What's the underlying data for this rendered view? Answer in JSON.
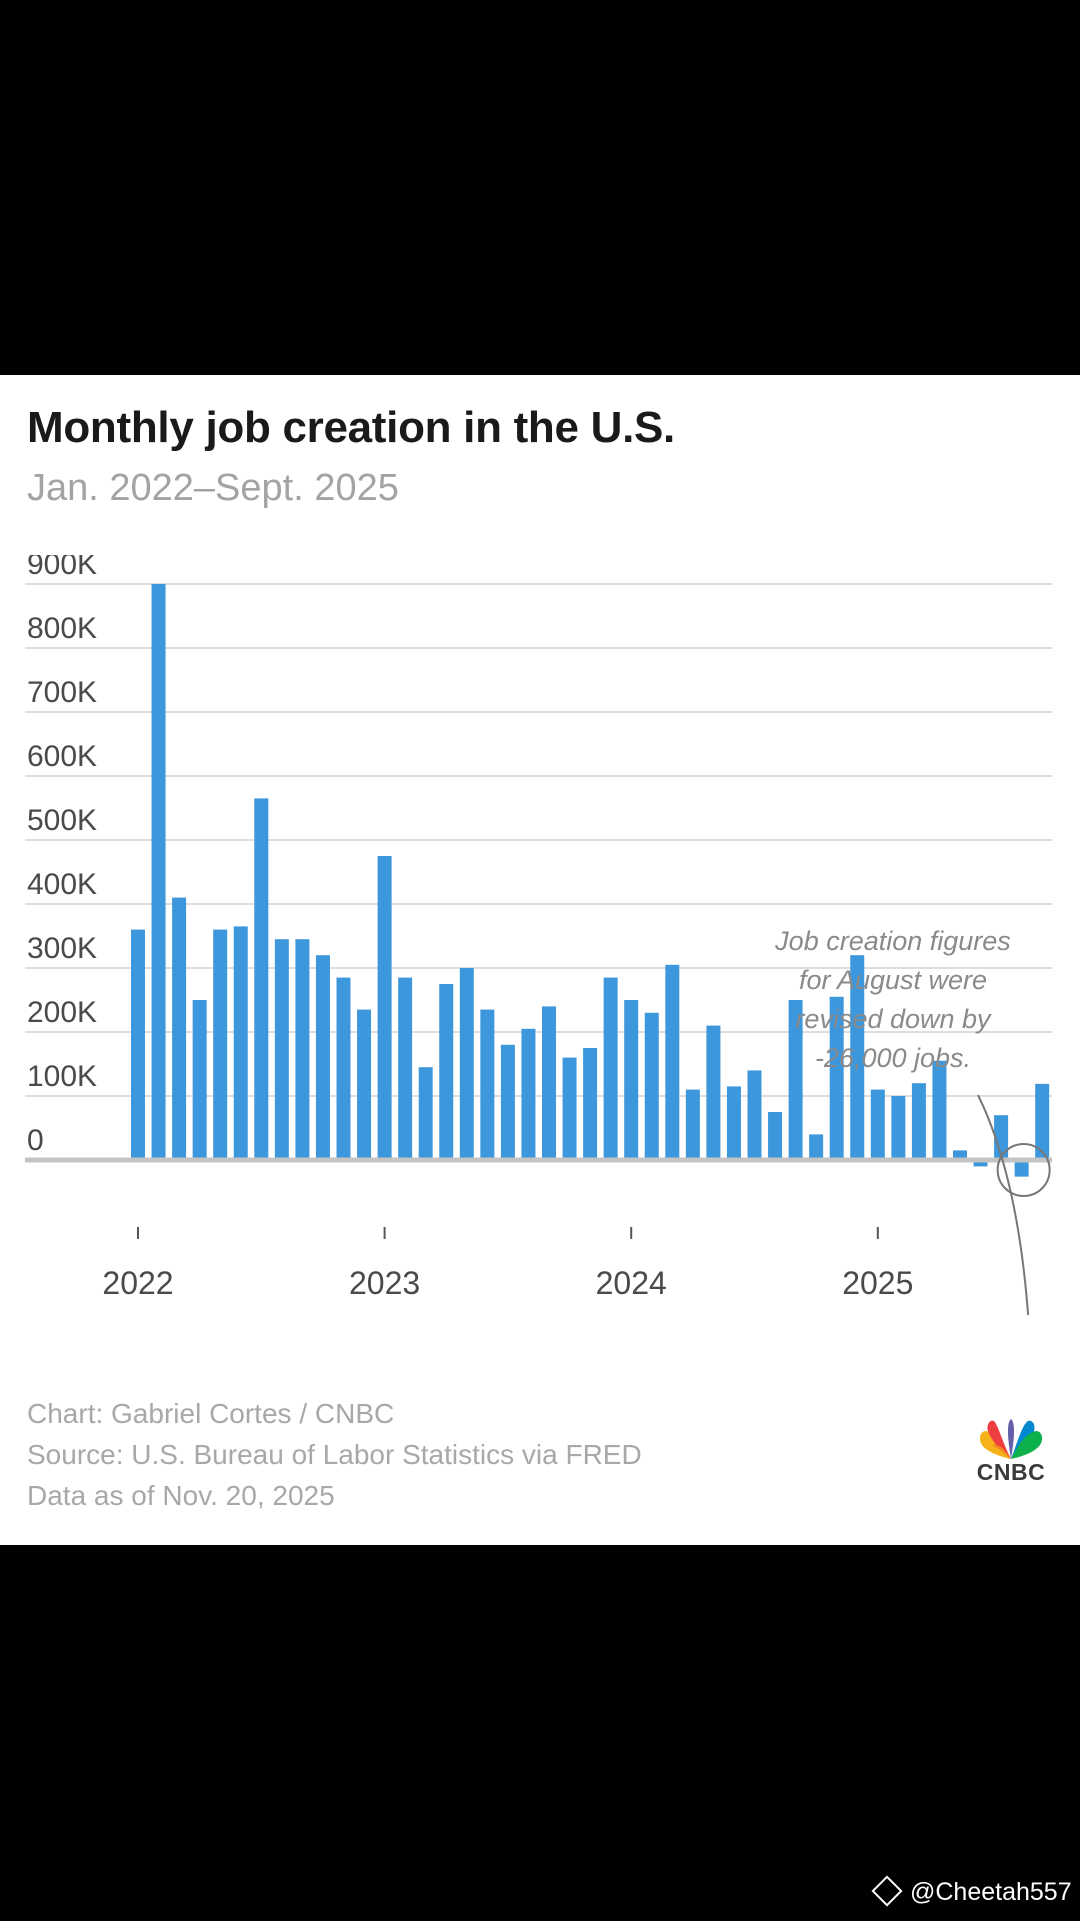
{
  "header": {
    "title": "Monthly job creation in the U.S.",
    "subtitle": "Jan. 2022–Sept. 2025"
  },
  "annotation": {
    "lines": [
      "Job creation figures",
      "for August were",
      "revised down by",
      "-26,000 jobs."
    ]
  },
  "footer": {
    "credit": "Chart: Gabriel Cortes / CNBC",
    "source": "Source: U.S. Bureau of Labor Statistics via FRED",
    "date": "Data as of Nov. 20, 2025"
  },
  "logo": {
    "text": "CNBC",
    "name": "cnbc-peacock-icon"
  },
  "watermark": {
    "text": "@Cheetah557",
    "icon": "binance-diamond-icon"
  },
  "colors": {
    "bar": "#3d97dc",
    "grid": "#dedede",
    "axis_text": "#4a4a4a",
    "annotation": "#8a8a8a"
  },
  "chart_data": {
    "type": "bar",
    "ylim": [
      -100000,
      900000
    ],
    "y_ticks": [
      0,
      100000,
      200000,
      300000,
      400000,
      500000,
      600000,
      700000,
      800000,
      900000
    ],
    "y_tick_labels": [
      "0",
      "100K",
      "200K",
      "300K",
      "400K",
      "500K",
      "600K",
      "700K",
      "800K",
      "900K"
    ],
    "x_tick_labels": [
      "2022",
      "2023",
      "2024",
      "2025"
    ],
    "grid": true,
    "categories": [
      "2022-01",
      "2022-02",
      "2022-03",
      "2022-04",
      "2022-05",
      "2022-06",
      "2022-07",
      "2022-08",
      "2022-09",
      "2022-10",
      "2022-11",
      "2022-12",
      "2023-01",
      "2023-02",
      "2023-03",
      "2023-04",
      "2023-05",
      "2023-06",
      "2023-07",
      "2023-08",
      "2023-09",
      "2023-10",
      "2023-11",
      "2023-12",
      "2024-01",
      "2024-02",
      "2024-03",
      "2024-04",
      "2024-05",
      "2024-06",
      "2024-07",
      "2024-08",
      "2024-09",
      "2024-10",
      "2024-11",
      "2024-12",
      "2025-01",
      "2025-02",
      "2025-03",
      "2025-04",
      "2025-05",
      "2025-06",
      "2025-07",
      "2025-08",
      "2025-09"
    ],
    "values": [
      360000,
      900000,
      410000,
      250000,
      360000,
      365000,
      565000,
      345000,
      345000,
      320000,
      285000,
      235000,
      475000,
      285000,
      145000,
      275000,
      300000,
      235000,
      180000,
      205000,
      240000,
      160000,
      175000,
      285000,
      250000,
      230000,
      305000,
      110000,
      210000,
      115000,
      140000,
      75000,
      250000,
      40000,
      255000,
      320000,
      110000,
      100000,
      120000,
      155000,
      15000,
      -10000,
      70000,
      -26000,
      119000
    ]
  }
}
